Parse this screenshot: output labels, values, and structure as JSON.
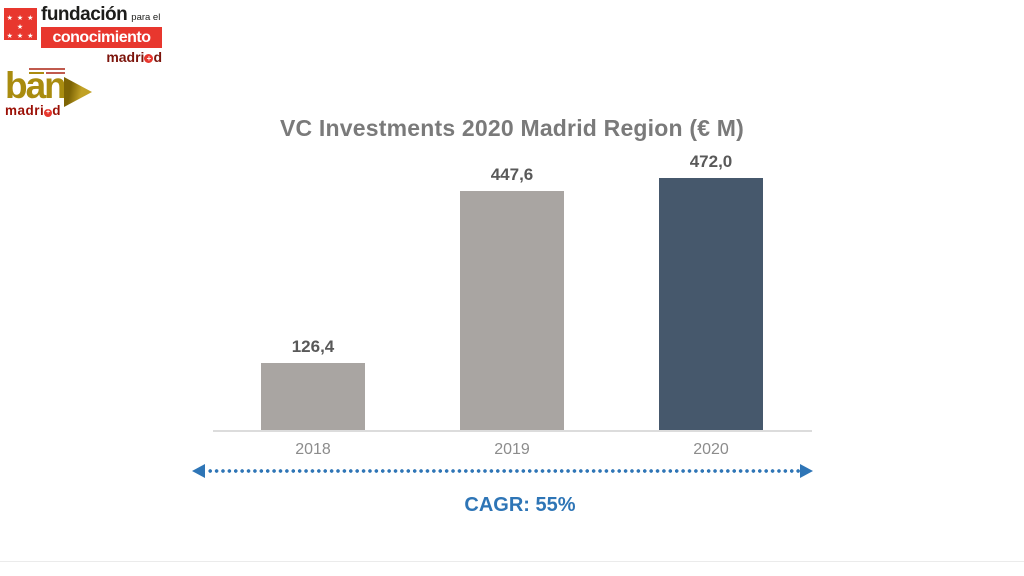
{
  "logos": {
    "fundacion": {
      "title": "fundación",
      "tagline": "para el",
      "band": "conocimiento",
      "brand_prefix": "madri",
      "brand_plus": "+",
      "brand_suffix": "d",
      "stars_row1": "★ ★ ★ ★",
      "stars_row2": "★ ★ ★"
    },
    "ban": {
      "name": "ban",
      "brand_prefix": "madri",
      "brand_plus": "+",
      "brand_suffix": "d"
    }
  },
  "chart_data": {
    "type": "bar",
    "title": "VC Investments 2020 Madrid Region (€ M)",
    "categories": [
      "2018",
      "2019",
      "2020"
    ],
    "values": [
      126.4,
      447.6,
      472.0
    ],
    "value_labels": [
      "126,4",
      "447,6",
      "472,0"
    ],
    "bar_colors": [
      "#a9a5a2",
      "#a9a5a2",
      "#46586c"
    ],
    "ylim": [
      0,
      500
    ],
    "grid": false,
    "legend": false,
    "xlabel": "",
    "ylabel": "",
    "annotation": "CAGR: 55%"
  },
  "palette": {
    "accent_blue": "#2e75b6",
    "bar_gray": "#a9a5a2",
    "bar_navy": "#46586c",
    "brand_red": "#e8372e",
    "brand_dark_red": "#9b1006",
    "brand_gold": "#a98c0f",
    "title_gray": "#7a7a7a",
    "value_label_gray": "#595959",
    "tick_gray": "#8c8c8c",
    "axis_gray": "#dcdcdc"
  }
}
